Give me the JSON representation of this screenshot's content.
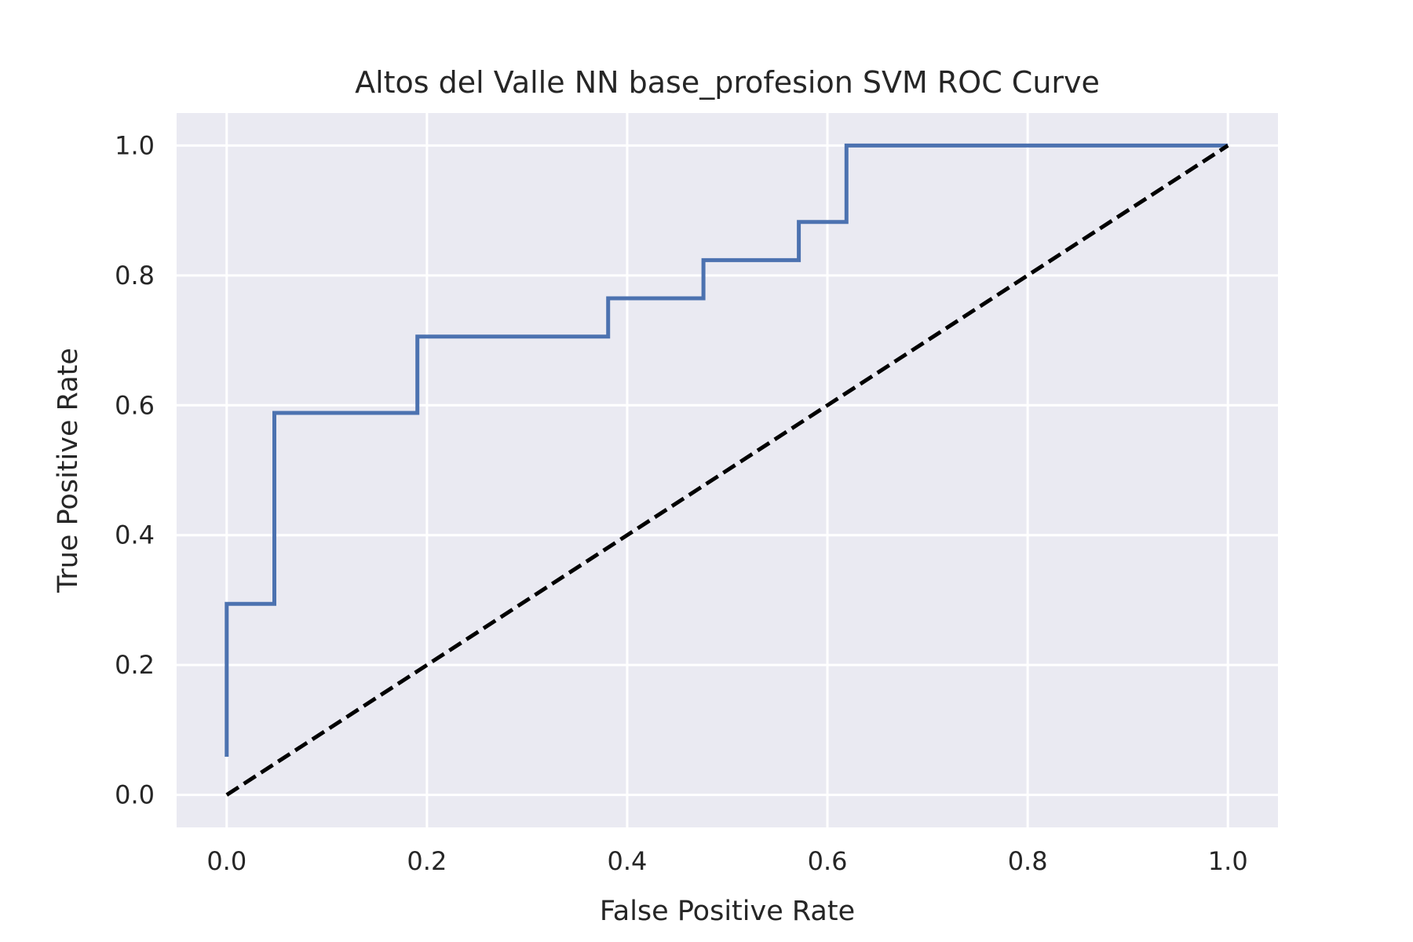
{
  "chart_data": {
    "type": "line",
    "title": "Altos del Valle NN base_profesion SVM ROC Curve",
    "xlabel": "False Positive Rate",
    "ylabel": "True Positive Rate",
    "xlim": [
      -0.05,
      1.05
    ],
    "ylim": [
      -0.05,
      1.05
    ],
    "xticks": [
      0.0,
      0.2,
      0.4,
      0.6,
      0.8,
      1.0
    ],
    "yticks": [
      0.0,
      0.2,
      0.4,
      0.6,
      0.8,
      1.0
    ],
    "xtick_labels": [
      "0.0",
      "0.2",
      "0.4",
      "0.6",
      "0.8",
      "1.0"
    ],
    "ytick_labels": [
      "0.0",
      "0.2",
      "0.4",
      "0.6",
      "0.8",
      "1.0"
    ],
    "grid": true,
    "legend": false,
    "series": [
      {
        "style": "solid",
        "color": "#4c72b0",
        "x": [
          0.0,
          0.0,
          0.0476,
          0.0476,
          0.1905,
          0.1905,
          0.381,
          0.381,
          0.4762,
          0.4762,
          0.5714,
          0.5714,
          0.619,
          0.619,
          1.0
        ],
        "y": [
          0.0588,
          0.2941,
          0.2941,
          0.5882,
          0.5882,
          0.7059,
          0.7059,
          0.7647,
          0.7647,
          0.8235,
          0.8235,
          0.8824,
          0.8824,
          1.0,
          1.0
        ]
      },
      {
        "style": "dashed",
        "color": "#000000",
        "x": [
          0.0,
          1.0
        ],
        "y": [
          0.0,
          1.0
        ]
      }
    ]
  },
  "colors": {
    "plot_background": "#eaeaf2",
    "grid": "#ffffff",
    "text": "#262626"
  }
}
